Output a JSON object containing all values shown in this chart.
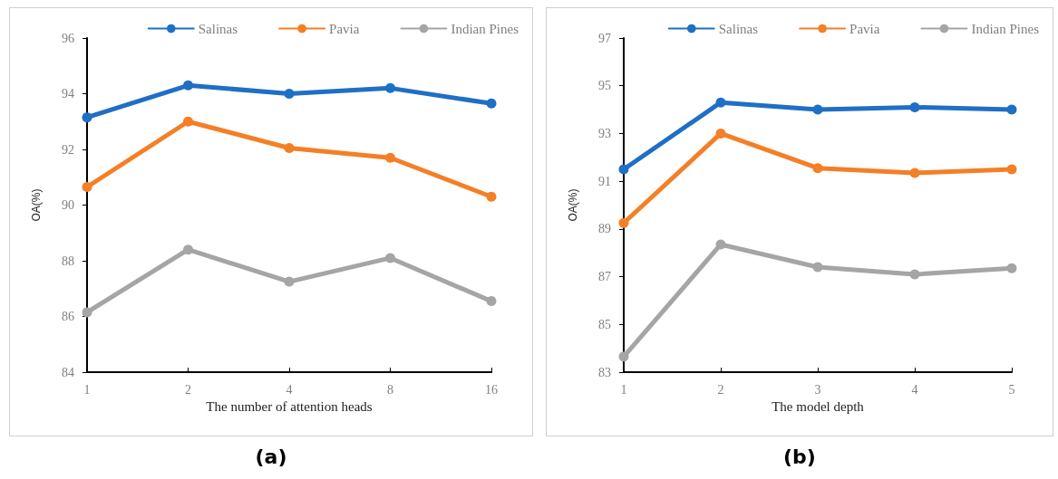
{
  "chart_data": [
    {
      "type": "line",
      "xlabel": "The number of attention heads",
      "ylabel": "OA(%)",
      "categories": [
        "1",
        "2",
        "4",
        "8",
        "16"
      ],
      "ylim": [
        84,
        96
      ],
      "yticks": [
        84,
        86,
        88,
        90,
        92,
        94,
        96
      ],
      "grid": false,
      "legend": "top right",
      "marker": "circle",
      "line_style": "solid",
      "annotations": [
        "(a)"
      ],
      "series": [
        {
          "name": "Salinas",
          "color": "#1f6fc5",
          "values": [
            93.15,
            94.3,
            94.0,
            94.2,
            93.65
          ]
        },
        {
          "name": "Pavia",
          "color": "#f47f26",
          "values": [
            90.65,
            93.0,
            92.05,
            91.7,
            90.3
          ]
        },
        {
          "name": "Indian Pines",
          "color": "#a5a5a5",
          "values": [
            86.15,
            88.4,
            87.25,
            88.1,
            86.55
          ]
        }
      ]
    },
    {
      "type": "line",
      "xlabel": "The model depth",
      "ylabel": "OA(%)",
      "categories": [
        "1",
        "2",
        "3",
        "4",
        "5"
      ],
      "ylim": [
        83,
        97
      ],
      "yticks": [
        83,
        85,
        87,
        89,
        91,
        93,
        95,
        97
      ],
      "grid": false,
      "legend": "top right",
      "marker": "circle",
      "line_style": "solid",
      "annotations": [
        "(b)"
      ],
      "series": [
        {
          "name": "Salinas",
          "color": "#1f6fc5",
          "values": [
            91.5,
            94.3,
            94.0,
            94.1,
            94.0
          ]
        },
        {
          "name": "Pavia",
          "color": "#f47f26",
          "values": [
            89.25,
            93.0,
            91.55,
            91.35,
            91.5
          ]
        },
        {
          "name": "Indian Pines",
          "color": "#a5a5a5",
          "values": [
            83.65,
            88.35,
            87.4,
            87.1,
            87.35
          ]
        }
      ]
    }
  ]
}
